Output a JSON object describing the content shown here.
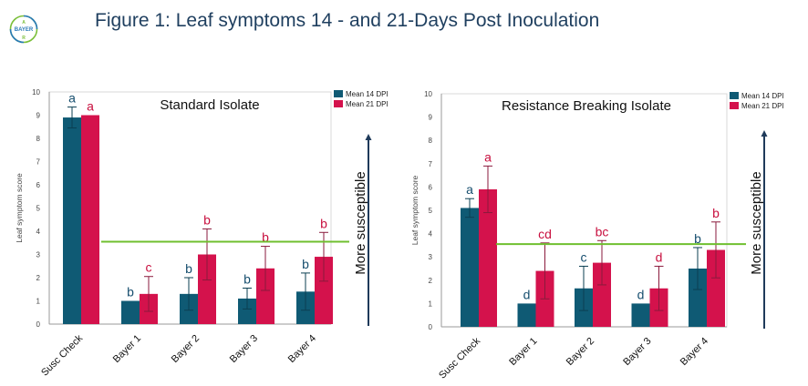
{
  "title": "Figure 1: Leaf symptoms 14 - and 21-Days Post Inoculation",
  "logo": {
    "text": "BAYER"
  },
  "colors": {
    "dpi14": "#0f5a74",
    "dpi21": "#d4124c",
    "threshold": "#6fbf2f",
    "arrow": "#1f3a5a",
    "title": "#1f3f5f"
  },
  "arrow_label": "More susceptible",
  "chart_data": [
    {
      "type": "bar",
      "title": "Standard Isolate",
      "ylabel": "Leaf symptom score",
      "xlabel": "",
      "ylim": [
        0,
        10
      ],
      "yticks": [
        0,
        1,
        2,
        3,
        4,
        5,
        6,
        7,
        8,
        9,
        10
      ],
      "grid": false,
      "legend": "top-right",
      "categories": [
        "Susc Check",
        "Bayer 1",
        "Bayer 2",
        "Bayer 3",
        "Bayer 4"
      ],
      "series": [
        {
          "name": "Mean 14 DPI",
          "color": "#0f5a74",
          "values": [
            8.9,
            1.0,
            1.3,
            1.1,
            1.4
          ],
          "error": [
            0.45,
            0.0,
            0.7,
            0.45,
            0.8
          ],
          "letters": [
            "a",
            "b",
            "b",
            "b",
            "b"
          ]
        },
        {
          "name": "Mean 21 DPI",
          "color": "#d4124c",
          "values": [
            9.0,
            1.3,
            3.0,
            2.4,
            2.9
          ],
          "error": [
            0.0,
            0.75,
            1.1,
            0.95,
            1.05
          ],
          "letters": [
            "a",
            "c",
            "b",
            "b",
            "b"
          ]
        }
      ],
      "threshold": 3.55
    },
    {
      "type": "bar",
      "title": "Resistance Breaking Isolate",
      "ylabel": "Leaf symptom score",
      "xlabel": "",
      "ylim": [
        0,
        10
      ],
      "yticks": [
        0,
        1,
        2,
        3,
        4,
        5,
        6,
        7,
        8,
        9,
        10
      ],
      "grid": false,
      "legend": "top-right",
      "categories": [
        "Susc Check",
        "Bayer 1",
        "Bayer 2",
        "Bayer 3",
        "Bayer 4"
      ],
      "series": [
        {
          "name": "Mean 14 DPI",
          "color": "#0f5a74",
          "values": [
            5.1,
            1.0,
            1.65,
            1.0,
            2.5
          ],
          "error": [
            0.4,
            0.0,
            0.95,
            0.0,
            0.9
          ],
          "letters": [
            "a",
            "d",
            "c",
            "d",
            "b"
          ]
        },
        {
          "name": "Mean 21 DPI",
          "color": "#d4124c",
          "values": [
            5.9,
            2.4,
            2.75,
            1.65,
            3.3
          ],
          "error": [
            1.0,
            1.2,
            0.95,
            0.95,
            1.2
          ],
          "letters": [
            "a",
            "cd",
            "bc",
            "d",
            "b"
          ]
        }
      ],
      "threshold": 3.55
    }
  ]
}
